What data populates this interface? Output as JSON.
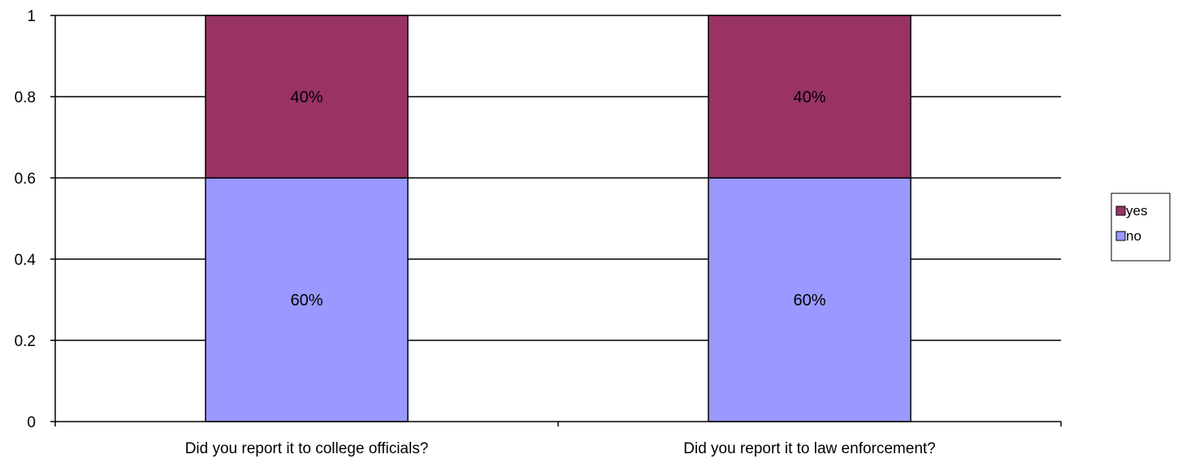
{
  "chart_data": {
    "type": "bar",
    "stacked": true,
    "title": "",
    "xlabel": "",
    "ylabel": "",
    "categories": [
      "Did you report it to college officials?",
      "Did you report it to law enforcement?"
    ],
    "series": [
      {
        "name": "no",
        "values": [
          0.6,
          0.6
        ],
        "labels": [
          "60%",
          "60%"
        ],
        "color": "#9999ff"
      },
      {
        "name": "yes",
        "values": [
          0.4,
          0.4
        ],
        "labels": [
          "40%",
          "40%"
        ],
        "color": "#993366"
      }
    ],
    "ylim": [
      0,
      1
    ],
    "yticks": [
      "0",
      "0.2",
      "0.4",
      "0.6",
      "0.8",
      "1"
    ],
    "grid": true,
    "legend": {
      "placement": "right",
      "entries": [
        "yes",
        "no"
      ]
    }
  }
}
